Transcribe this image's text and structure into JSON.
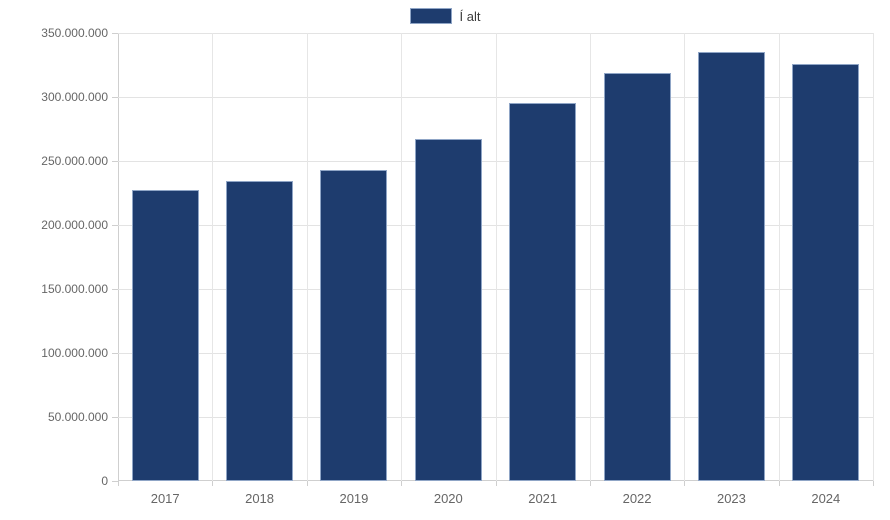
{
  "legend": {
    "label": "Í alt",
    "swatch_color": "#1e3c6e",
    "swatch_border_color": "#8fa5c6"
  },
  "chart_data": {
    "type": "bar",
    "title": "",
    "xlabel": "",
    "ylabel": "",
    "categories": [
      "2017",
      "2018",
      "2019",
      "2020",
      "2021",
      "2022",
      "2023",
      "2024"
    ],
    "series": [
      {
        "name": "Í alt",
        "values": [
          227000000,
          234000000,
          243000000,
          267000000,
          295000000,
          319000000,
          335000000,
          326000000
        ]
      }
    ],
    "ylim": [
      0,
      350000000
    ],
    "ytick_step": 50000000,
    "ytick_labels": [
      "0",
      "50.000.000",
      "100.000.000",
      "150.000.000",
      "200.000.000",
      "250.000.000",
      "300.000.000",
      "350.000.000"
    ],
    "grid": true,
    "legend_position": "top-center",
    "bar_color": "#1e3c6e",
    "bar_border_color": "#8fa5c6",
    "gridline_color": "#e3e3e3",
    "axis_line_color": "#cfcfcf",
    "tick_label_color": "#666666"
  }
}
